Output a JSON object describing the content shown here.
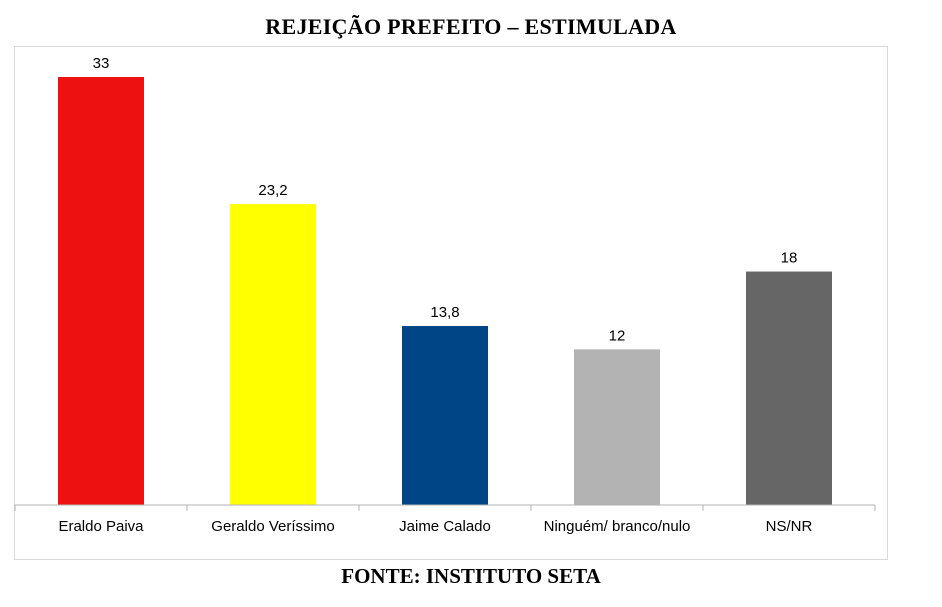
{
  "title": "REJEIÇÃO PREFEITO – ESTIMULADA",
  "source": "FONTE: INSTITUTO SETA",
  "chart_data": {
    "type": "bar",
    "title": "REJEIÇÃO PREFEITO – ESTIMULADA",
    "categories": [
      "Eraldo Paiva",
      "Geraldo Veríssimo",
      "Jaime Calado",
      "Ninguém/ branco/nulo",
      "NS/NR"
    ],
    "values": [
      33,
      23.2,
      13.8,
      12,
      18
    ],
    "value_labels": [
      "33",
      "23,2",
      "13,8",
      "12",
      "18"
    ],
    "colors": [
      "#ee1111",
      "#ffff00",
      "#004586",
      "#b3b3b3",
      "#666666"
    ],
    "ylim": [
      0,
      33
    ],
    "grid": false,
    "legend": "none"
  }
}
